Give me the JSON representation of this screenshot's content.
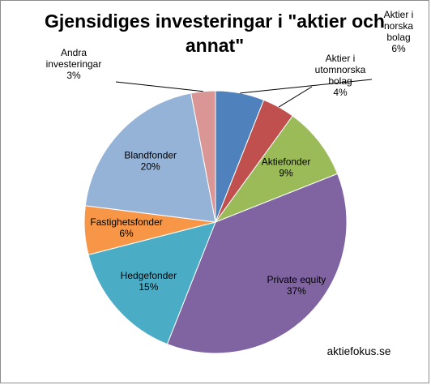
{
  "chart_data": {
    "type": "pie",
    "title_lines": [
      "Gjensidiges investeringar i \"aktier och",
      "annat\""
    ],
    "slices": [
      {
        "label_lines": [
          "Aktier i",
          "norska",
          "bolag"
        ],
        "value": 6,
        "value_label": "6%",
        "color": "#4f81bd"
      },
      {
        "label_lines": [
          "Aktier i",
          "utomnorska",
          "bolag"
        ],
        "value": 4,
        "value_label": "4%",
        "color": "#c0504d"
      },
      {
        "label_lines": [
          "Aktiefonder"
        ],
        "value": 9,
        "value_label": "9%",
        "color": "#9bbb59"
      },
      {
        "label_lines": [
          "Private equity"
        ],
        "value": 37,
        "value_label": "37%",
        "color": "#8064a2"
      },
      {
        "label_lines": [
          "Hedgefonder"
        ],
        "value": 15,
        "value_label": "15%",
        "color": "#4bacc6"
      },
      {
        "label_lines": [
          "Fastighetsfonder"
        ],
        "value": 6,
        "value_label": "6%",
        "color": "#f79646"
      },
      {
        "label_lines": [
          "Blandfonder"
        ],
        "value": 20,
        "value_label": "20%",
        "color": "#95b3d7"
      },
      {
        "label_lines": [
          "Andra",
          "investeringar"
        ],
        "value": 3,
        "value_label": "3%",
        "color": "#d99694"
      }
    ],
    "legend": "none"
  },
  "source_text": "aktiefokus.se"
}
